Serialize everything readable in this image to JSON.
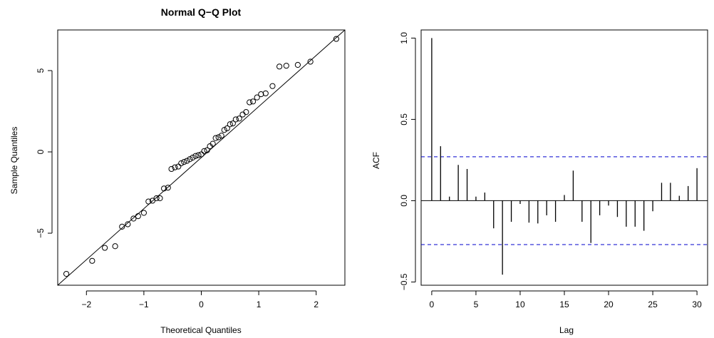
{
  "chart_data": [
    {
      "type": "scatter",
      "title": "Normal Q−Q Plot",
      "xlabel": "Theoretical Quantiles",
      "ylabel": "Sample Quantiles",
      "xlim": [
        -2.5,
        2.5
      ],
      "ylim": [
        -8.2,
        7.5
      ],
      "xticks": [
        -2,
        -1,
        0,
        1,
        2
      ],
      "xtick_labels": [
        "−2",
        "−1",
        "0",
        "1",
        "2"
      ],
      "yticks": [
        -5,
        0,
        5
      ],
      "ytick_labels": [
        "−5",
        "0",
        "5"
      ],
      "grid": false,
      "reference_line": {
        "x1": -2.5,
        "y1": -8.2,
        "x2": 2.5,
        "y2": 7.5
      },
      "points": [
        [
          -2.35,
          -7.5
        ],
        [
          -1.9,
          -6.7
        ],
        [
          -1.68,
          -5.9
        ],
        [
          -1.5,
          -5.8
        ],
        [
          -1.38,
          -4.6
        ],
        [
          -1.28,
          -4.45
        ],
        [
          -1.18,
          -4.1
        ],
        [
          -1.1,
          -3.95
        ],
        [
          -1.0,
          -3.75
        ],
        [
          -0.92,
          -3.05
        ],
        [
          -0.85,
          -3.0
        ],
        [
          -0.78,
          -2.85
        ],
        [
          -0.72,
          -2.85
        ],
        [
          -0.65,
          -2.25
        ],
        [
          -0.58,
          -2.2
        ],
        [
          -0.52,
          -1.05
        ],
        [
          -0.46,
          -0.95
        ],
        [
          -0.4,
          -0.9
        ],
        [
          -0.35,
          -0.7
        ],
        [
          -0.3,
          -0.62
        ],
        [
          -0.25,
          -0.55
        ],
        [
          -0.2,
          -0.45
        ],
        [
          -0.15,
          -0.35
        ],
        [
          -0.1,
          -0.25
        ],
        [
          -0.05,
          -0.2
        ],
        [
          0.0,
          -0.15
        ],
        [
          0.05,
          0.05
        ],
        [
          0.1,
          0.1
        ],
        [
          0.15,
          0.35
        ],
        [
          0.2,
          0.5
        ],
        [
          0.25,
          0.85
        ],
        [
          0.3,
          0.9
        ],
        [
          0.35,
          1.0
        ],
        [
          0.4,
          1.35
        ],
        [
          0.45,
          1.45
        ],
        [
          0.5,
          1.7
        ],
        [
          0.55,
          1.75
        ],
        [
          0.6,
          2.0
        ],
        [
          0.66,
          2.05
        ],
        [
          0.72,
          2.3
        ],
        [
          0.78,
          2.45
        ],
        [
          0.84,
          3.05
        ],
        [
          0.9,
          3.1
        ],
        [
          0.97,
          3.35
        ],
        [
          1.04,
          3.55
        ],
        [
          1.12,
          3.6
        ],
        [
          1.24,
          4.05
        ],
        [
          1.36,
          5.25
        ],
        [
          1.48,
          5.3
        ],
        [
          1.68,
          5.35
        ],
        [
          1.9,
          5.55
        ],
        [
          2.35,
          6.95
        ]
      ]
    },
    {
      "type": "bar",
      "xlabel": "Lag",
      "ylabel": "ACF",
      "xlim": [
        -1.2,
        31.2
      ],
      "ylim": [
        -0.52,
        1.05
      ],
      "xticks": [
        0,
        5,
        10,
        15,
        20,
        25,
        30
      ],
      "xtick_labels": [
        "0",
        "5",
        "10",
        "15",
        "20",
        "25",
        "30"
      ],
      "yticks": [
        -0.5,
        0.0,
        0.5,
        1.0
      ],
      "ytick_labels": [
        "−0.5",
        "0.0",
        "0.5",
        "1.0"
      ],
      "grid": false,
      "confidence_bound": 0.27,
      "confidence_color": "#0000cd",
      "lags": [
        0,
        1,
        2,
        3,
        4,
        5,
        6,
        7,
        8,
        9,
        10,
        11,
        12,
        13,
        14,
        15,
        16,
        17,
        18,
        19,
        20,
        21,
        22,
        23,
        24,
        25,
        26,
        27,
        28,
        29,
        30
      ],
      "values": [
        1.0,
        0.335,
        0.025,
        0.22,
        0.195,
        0.025,
        0.05,
        -0.17,
        -0.455,
        -0.13,
        -0.02,
        -0.135,
        -0.14,
        -0.09,
        -0.13,
        0.035,
        0.185,
        -0.13,
        -0.26,
        -0.09,
        -0.03,
        -0.1,
        -0.16,
        -0.16,
        -0.185,
        -0.065,
        0.11,
        0.11,
        0.03,
        0.09,
        0.2
      ]
    }
  ]
}
